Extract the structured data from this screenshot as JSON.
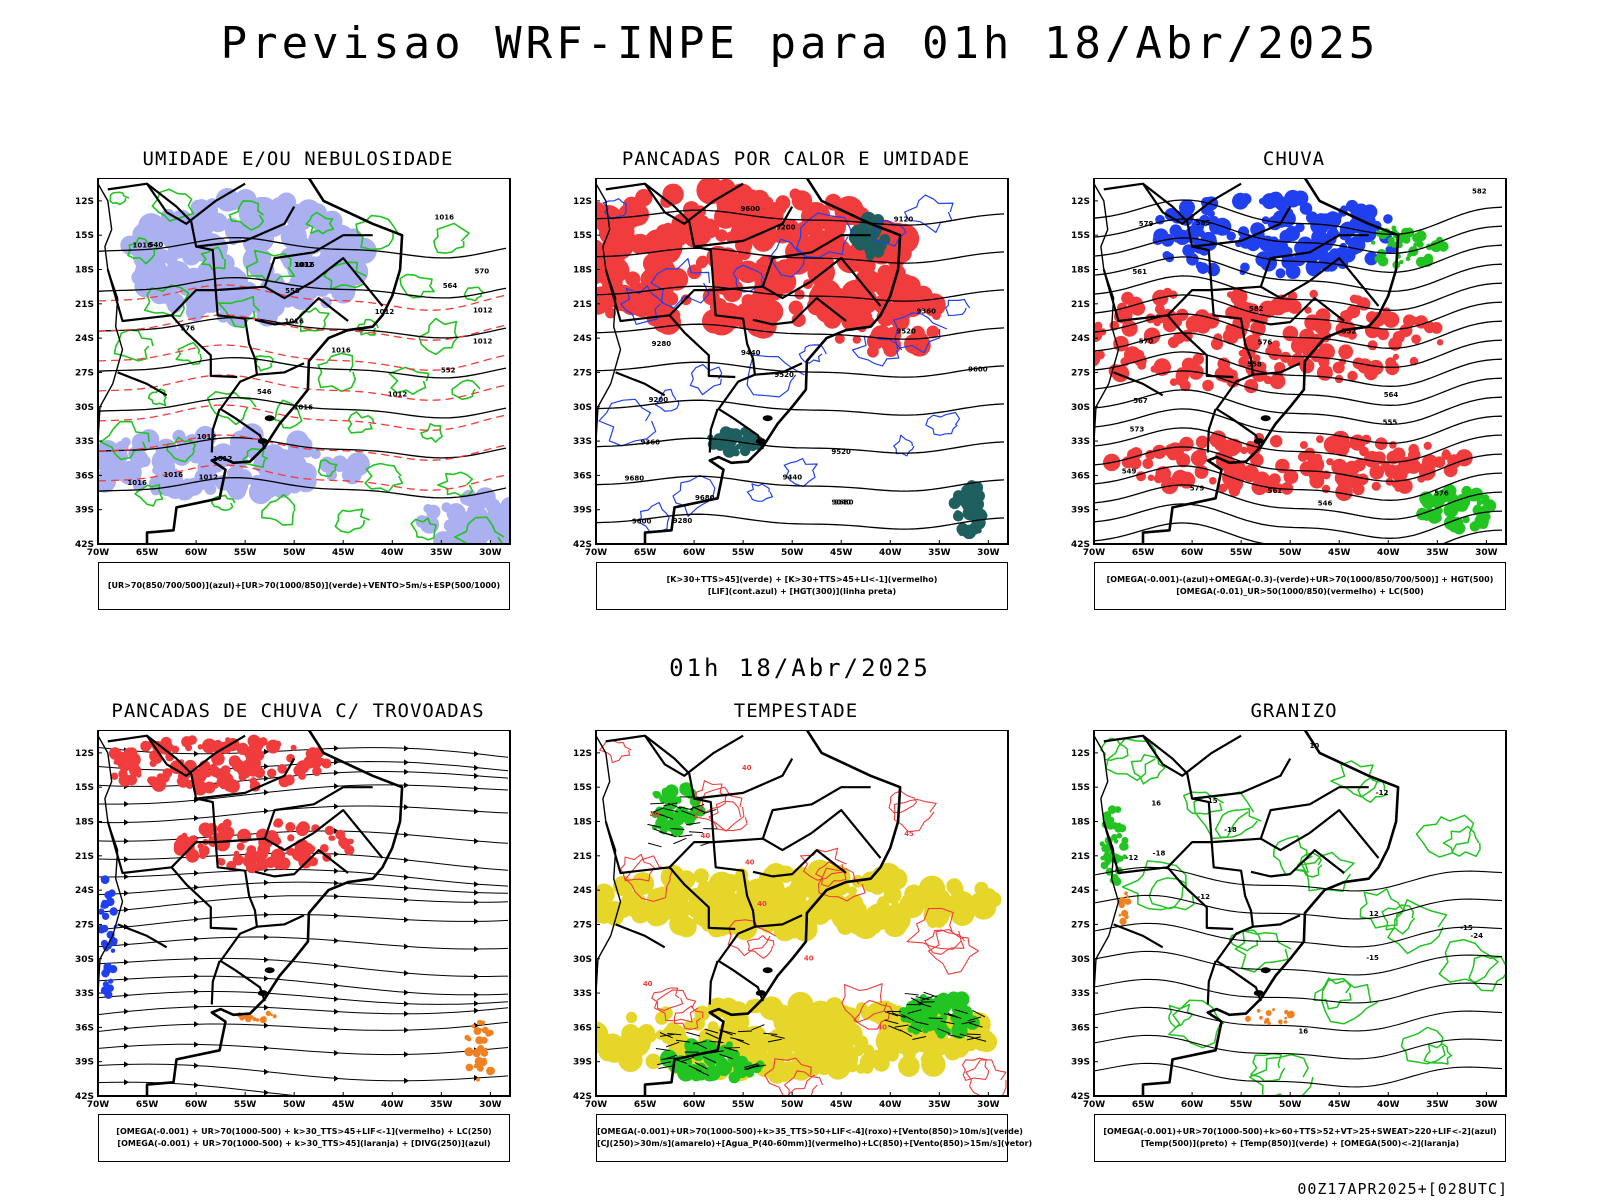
{
  "header": {
    "title": "Previsao WRF-INPE  para 01h 18/Abr/2025"
  },
  "mid_title": "01h 18/Abr/2025",
  "footer": "00Z17APR2025+[028UTC]",
  "axes": {
    "lat_labels": [
      "12S",
      "15S",
      "18S",
      "21S",
      "24S",
      "27S",
      "30S",
      "33S",
      "36S",
      "39S",
      "42S"
    ],
    "lon_labels": [
      "70W",
      "65W",
      "60W",
      "55W",
      "50W",
      "45W",
      "40W",
      "35W",
      "30W"
    ]
  },
  "colors": {
    "red": "#f03c3c",
    "green": "#22c422",
    "blue": "#2040f0",
    "lilac": "#aab0f0",
    "yellow": "#e6d62a",
    "darkteal": "#1f5f5f",
    "orange": "#f08020"
  },
  "chart_data": [
    {
      "type": "map",
      "title": "UMIDADE E/OU NEBULOSIDADE",
      "legend": [
        "[UR>70(850/700/500)](azul)+[UR>70(1000/850)](verde)+VENTO>5m/s+ESP(500/1000)"
      ],
      "contour_labels": [
        "1012",
        "1012",
        "1012",
        "1012",
        "1016",
        "1016",
        "1016",
        "1016",
        "1016",
        "1016",
        "1012",
        "1012",
        "1016",
        "1012",
        "1016",
        "1012",
        "576",
        "570",
        "564",
        "558",
        "552",
        "546",
        "540"
      ]
    },
    {
      "type": "map",
      "title": "PANCADAS POR CALOR E UMIDADE",
      "legend": [
        "[K>30+TTS>45](verde) + [K>30+TTS>45+LI<-1](vermelho)",
        "[LIF](cont.azul) + [HGT(300)](linha preta)"
      ],
      "contour_labels": [
        "9680",
        "9680",
        "9680",
        "9600",
        "9600",
        "9600",
        "9520",
        "9520",
        "9520",
        "9440",
        "9440",
        "9360",
        "9360",
        "9280",
        "9280",
        "9200",
        "9200",
        "9120",
        "9040"
      ]
    },
    {
      "type": "map",
      "title": "CHUVA",
      "legend": [
        "[OMEGA(-0.001)-(azul)+OMEGA(-0.3)-(verde)+UR>70(1000/850/700/500)] + HGT(500)",
        "[OMEGA(-0.01)_UR>50(1000/850)(vermelho) + LC(500)"
      ],
      "contour_labels": [
        "585",
        "582",
        "582",
        "579",
        "579",
        "576",
        "576",
        "573",
        "570",
        "567",
        "564",
        "561",
        "561",
        "558",
        "555",
        "552",
        "549",
        "546"
      ]
    },
    {
      "type": "map",
      "title": "PANCADAS DE CHUVA C/ TROVOADAS",
      "legend": [
        "[OMEGA(-0.001) + UR>70(1000-500) + k>30_TTS>45+LIF<-1](vermelho) + LC(250)",
        "[OMEGA(-0.001) + UR>70(1000-500) + k>30_TTS>45](laranja) + [DIVG(250)](azul)"
      ],
      "contour_labels": []
    },
    {
      "type": "map",
      "title": "TEMPESTADE",
      "legend": [
        "[OMEGA(-0.001)+UR>70(1000-500)+k>35_TTS>50+LIF<-4](roxo)+[Vento(850)>10m/s](verde)",
        "[CJ(250)>30m/s](amarelo)+[Agua_P(40-60mm)](vermelho)+LC(850)+[Vento(850)>15m/s](vetor)"
      ],
      "contour_labels": [
        "40",
        "40",
        "40",
        "40",
        "40",
        "45",
        "40",
        "40",
        "40"
      ]
    },
    {
      "type": "map",
      "title": "GRANIZO",
      "legend": [
        "[OMEGA(-0.001)+UR>70(1000-500)+k>60+TTS>52+VT>25+SWEAT>220+LIF<-2](azul)",
        "[Temp(500)](preto) + [Temp(850)](verde) + [OMEGA(500)<-2](laranja)"
      ],
      "contour_labels": [
        "-12",
        "-12",
        "-12",
        "-15",
        "-18",
        "-15",
        "-18",
        "-24",
        "12",
        "15",
        "16",
        "16",
        "10"
      ]
    }
  ]
}
